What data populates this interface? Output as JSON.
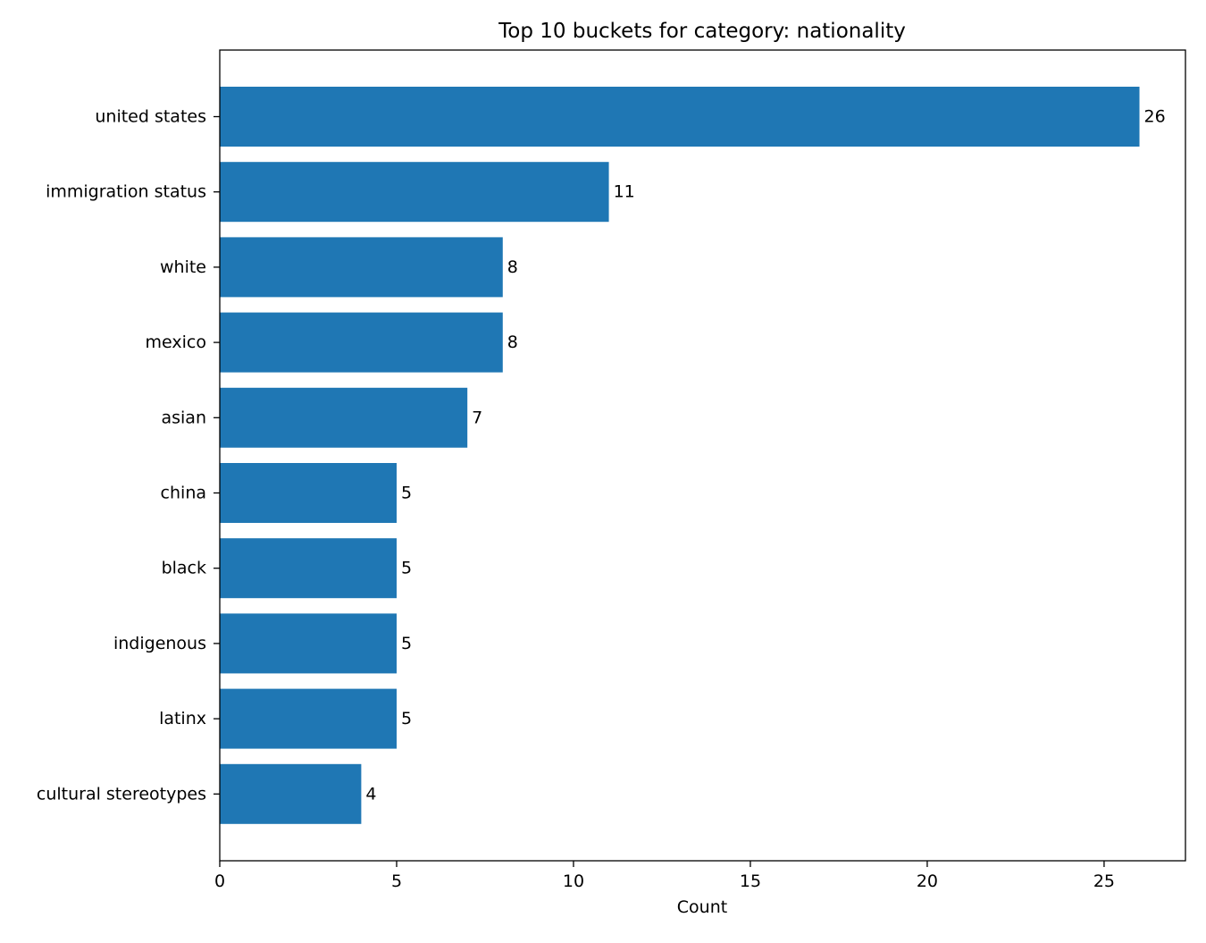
{
  "chart_data": {
    "type": "bar",
    "orientation": "horizontal",
    "title": "Top 10 buckets for category: nationality",
    "xlabel": "Count",
    "ylabel": "",
    "categories": [
      "united states",
      "immigration status",
      "white",
      "mexico",
      "asian",
      "china",
      "black",
      "indigenous",
      "latinx",
      "cultural stereotypes"
    ],
    "values": [
      26,
      11,
      8,
      8,
      7,
      5,
      5,
      5,
      5,
      4
    ],
    "xlim": [
      0,
      27.3
    ],
    "xticks": [
      0,
      5,
      10,
      15,
      20,
      25
    ],
    "grid": false,
    "legend": "none",
    "bar_color": "#1f77b4"
  }
}
